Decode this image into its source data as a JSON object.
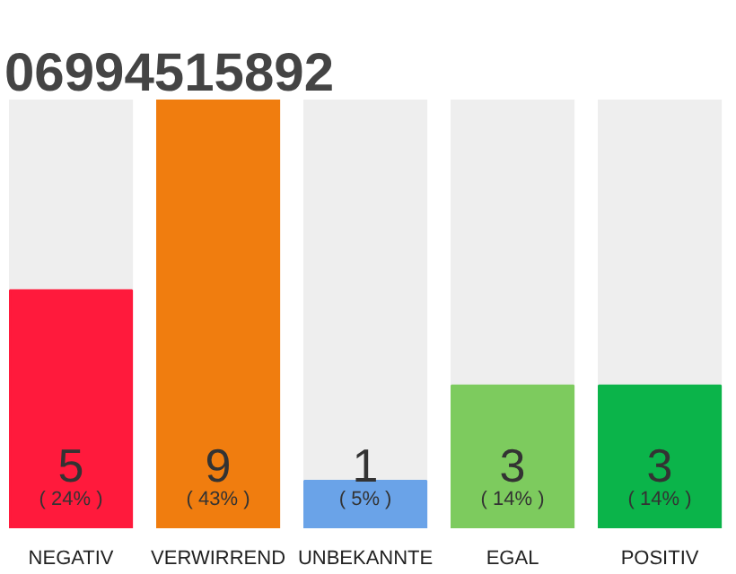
{
  "chart_data": {
    "type": "bar",
    "title": "06994515892",
    "categories": [
      "NEGATIV",
      "VERWIRREND",
      "UNBEKANNTE",
      "EGAL",
      "POSITIV"
    ],
    "values": [
      5,
      9,
      1,
      3,
      3
    ],
    "colors": [
      "#ff1a3c",
      "#f07d0f",
      "#6aa3e8",
      "#7dcb5e",
      "#0bb44a"
    ],
    "data_labels": true,
    "annotations": [
      {
        "text": "( 24% )",
        "x": "NEGATIV",
        "y": 0
      },
      {
        "text": "( 43% )",
        "x": "VERWIRREND",
        "y": 0
      },
      {
        "text": "( 5% )",
        "x": "UNBEKANNTE",
        "y": 0
      },
      {
        "text": "( 14% )",
        "x": "EGAL",
        "y": 0
      },
      {
        "text": "( 14% )",
        "x": "POSITIV",
        "y": 0
      }
    ],
    "grid": false
  }
}
